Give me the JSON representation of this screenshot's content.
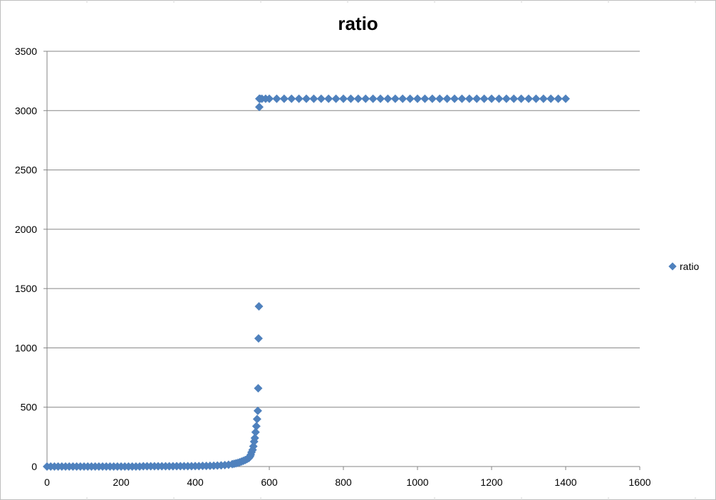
{
  "chart_data": {
    "type": "scatter",
    "title": "ratio",
    "xlabel": "",
    "ylabel": "",
    "xlim": [
      0,
      1600
    ],
    "ylim": [
      0,
      3500
    ],
    "x_ticks": [
      0,
      200,
      400,
      600,
      800,
      1000,
      1200,
      1400,
      1600
    ],
    "y_ticks": [
      0,
      500,
      1000,
      1500,
      2000,
      2500,
      3000,
      3500
    ],
    "grid": "horizontal",
    "legend_position": "right",
    "series": [
      {
        "name": "ratio",
        "color": "#4f81bd",
        "marker": "diamond",
        "points": [
          [
            0,
            0
          ],
          [
            10,
            0
          ],
          [
            20,
            0
          ],
          [
            30,
            0
          ],
          [
            40,
            0
          ],
          [
            50,
            0
          ],
          [
            60,
            0
          ],
          [
            70,
            0
          ],
          [
            80,
            0
          ],
          [
            90,
            0
          ],
          [
            100,
            0
          ],
          [
            110,
            0
          ],
          [
            120,
            0
          ],
          [
            130,
            0
          ],
          [
            140,
            0
          ],
          [
            150,
            0
          ],
          [
            160,
            0
          ],
          [
            170,
            0
          ],
          [
            180,
            0
          ],
          [
            190,
            0
          ],
          [
            200,
            0
          ],
          [
            210,
            0
          ],
          [
            220,
            0
          ],
          [
            230,
            0
          ],
          [
            240,
            0
          ],
          [
            250,
            0
          ],
          [
            260,
            2
          ],
          [
            270,
            2
          ],
          [
            280,
            2
          ],
          [
            290,
            2
          ],
          [
            300,
            2
          ],
          [
            310,
            2
          ],
          [
            320,
            2
          ],
          [
            330,
            2
          ],
          [
            340,
            2
          ],
          [
            350,
            3
          ],
          [
            360,
            3
          ],
          [
            370,
            3
          ],
          [
            380,
            3
          ],
          [
            390,
            3
          ],
          [
            400,
            4
          ],
          [
            410,
            4
          ],
          [
            420,
            5
          ],
          [
            430,
            5
          ],
          [
            440,
            6
          ],
          [
            450,
            7
          ],
          [
            460,
            8
          ],
          [
            470,
            10
          ],
          [
            480,
            12
          ],
          [
            490,
            15
          ],
          [
            500,
            20
          ],
          [
            505,
            23
          ],
          [
            510,
            27
          ],
          [
            515,
            31
          ],
          [
            520,
            36
          ],
          [
            525,
            42
          ],
          [
            530,
            48
          ],
          [
            535,
            55
          ],
          [
            540,
            63
          ],
          [
            545,
            72
          ],
          [
            548,
            85
          ],
          [
            550,
            100
          ],
          [
            552,
            120
          ],
          [
            555,
            140
          ],
          [
            557,
            170
          ],
          [
            559,
            210
          ],
          [
            561,
            240
          ],
          [
            563,
            290
          ],
          [
            565,
            340
          ],
          [
            567,
            400
          ],
          [
            569,
            470
          ],
          [
            570,
            660
          ],
          [
            571,
            1080
          ],
          [
            572,
            1350
          ],
          [
            573,
            3030
          ],
          [
            573,
            3100
          ],
          [
            575,
            3100
          ],
          [
            580,
            3100
          ],
          [
            590,
            3100
          ],
          [
            600,
            3100
          ],
          [
            620,
            3100
          ],
          [
            640,
            3100
          ],
          [
            660,
            3100
          ],
          [
            680,
            3100
          ],
          [
            700,
            3100
          ],
          [
            720,
            3100
          ],
          [
            740,
            3100
          ],
          [
            760,
            3100
          ],
          [
            780,
            3100
          ],
          [
            800,
            3100
          ],
          [
            820,
            3100
          ],
          [
            840,
            3100
          ],
          [
            860,
            3100
          ],
          [
            880,
            3100
          ],
          [
            900,
            3100
          ],
          [
            920,
            3100
          ],
          [
            940,
            3100
          ],
          [
            960,
            3100
          ],
          [
            980,
            3100
          ],
          [
            1000,
            3100
          ],
          [
            1020,
            3100
          ],
          [
            1040,
            3100
          ],
          [
            1060,
            3100
          ],
          [
            1080,
            3100
          ],
          [
            1100,
            3100
          ],
          [
            1120,
            3100
          ],
          [
            1140,
            3100
          ],
          [
            1160,
            3100
          ],
          [
            1180,
            3100
          ],
          [
            1200,
            3100
          ],
          [
            1220,
            3100
          ],
          [
            1240,
            3100
          ],
          [
            1260,
            3100
          ],
          [
            1280,
            3100
          ],
          [
            1300,
            3100
          ],
          [
            1320,
            3100
          ],
          [
            1340,
            3100
          ],
          [
            1360,
            3100
          ],
          [
            1380,
            3100
          ],
          [
            1400,
            3100
          ]
        ]
      }
    ]
  }
}
